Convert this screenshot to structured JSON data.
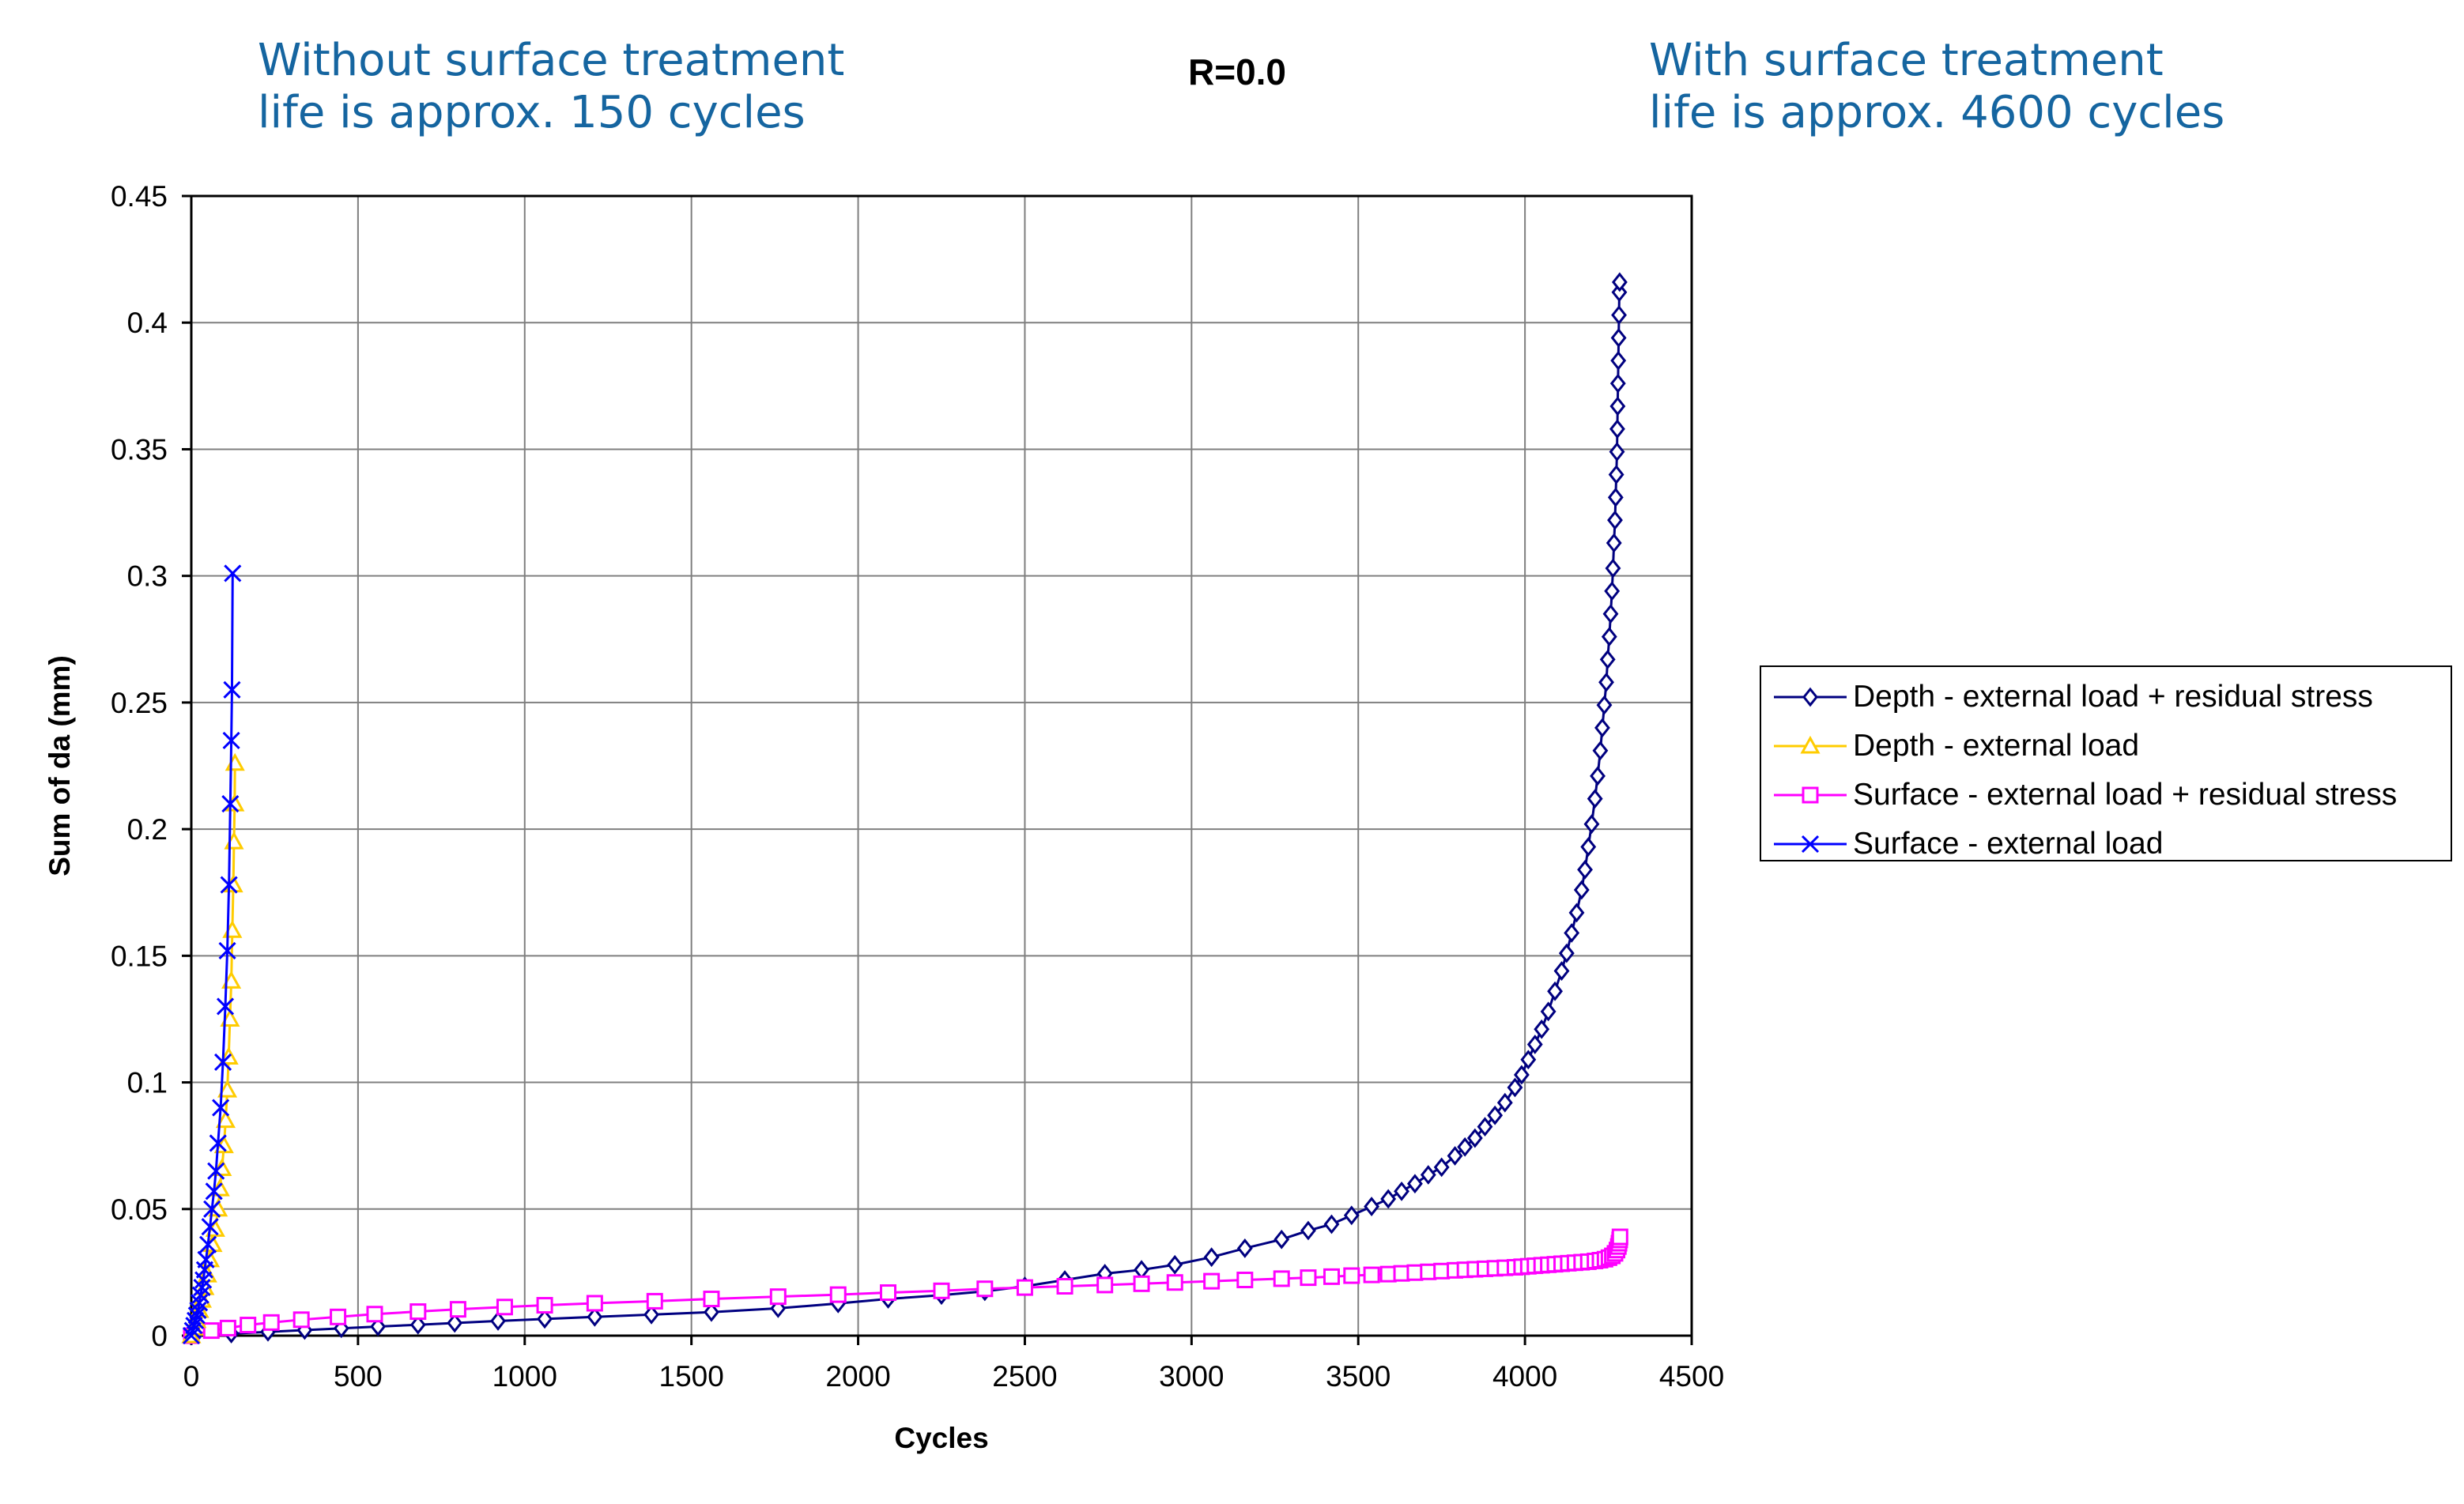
{
  "annotations": {
    "left_line1": "Without surface treatment",
    "left_line2": "life is approx. 150 cycles",
    "right_line1": "With surface treatment",
    "right_line2": "life is approx. 4600 cycles"
  },
  "chart_data": {
    "type": "line",
    "title": "R=0.0",
    "xlabel": "Cycles",
    "ylabel": "Sum of da (mm)",
    "xlim": [
      0,
      4500
    ],
    "ylim": [
      0,
      0.45
    ],
    "xticks": [
      0,
      500,
      1000,
      1500,
      2000,
      2500,
      3000,
      3500,
      4000,
      4500
    ],
    "yticks": [
      0,
      0.05,
      0.1,
      0.15,
      0.2,
      0.25,
      0.3,
      0.35,
      0.4,
      0.45
    ],
    "ytick_labels": [
      "0",
      "0.05",
      "0.1",
      "0.15",
      "0.2",
      "0.25",
      "0.3",
      "0.35",
      "0.4",
      "0.45"
    ],
    "grid": true,
    "legend_position": "right",
    "series": [
      {
        "name": "Depth - external load + residual stress",
        "color": "#000080",
        "marker": "diamond",
        "points": [
          [
            0,
            0
          ],
          [
            120,
            0.0008
          ],
          [
            230,
            0.0015
          ],
          [
            340,
            0.0022
          ],
          [
            450,
            0.0029
          ],
          [
            560,
            0.0036
          ],
          [
            680,
            0.0043
          ],
          [
            790,
            0.005
          ],
          [
            920,
            0.0058
          ],
          [
            1060,
            0.0066
          ],
          [
            1210,
            0.0074
          ],
          [
            1380,
            0.0083
          ],
          [
            1560,
            0.0093
          ],
          [
            1760,
            0.0108
          ],
          [
            1940,
            0.0127
          ],
          [
            2090,
            0.0145
          ],
          [
            2250,
            0.016
          ],
          [
            2380,
            0.0175
          ],
          [
            2500,
            0.0195
          ],
          [
            2620,
            0.022
          ],
          [
            2740,
            0.0245
          ],
          [
            2850,
            0.026
          ],
          [
            2950,
            0.028
          ],
          [
            3060,
            0.031
          ],
          [
            3160,
            0.0345
          ],
          [
            3270,
            0.038
          ],
          [
            3350,
            0.0415
          ],
          [
            3420,
            0.044
          ],
          [
            3480,
            0.0475
          ],
          [
            3540,
            0.051
          ],
          [
            3590,
            0.054
          ],
          [
            3630,
            0.057
          ],
          [
            3670,
            0.06
          ],
          [
            3710,
            0.0635
          ],
          [
            3750,
            0.0665
          ],
          [
            3790,
            0.071
          ],
          [
            3820,
            0.0745
          ],
          [
            3850,
            0.078
          ],
          [
            3880,
            0.0825
          ],
          [
            3910,
            0.087
          ],
          [
            3940,
            0.092
          ],
          [
            3970,
            0.098
          ],
          [
            3990,
            0.103
          ],
          [
            4010,
            0.109
          ],
          [
            4030,
            0.115
          ],
          [
            4050,
            0.121
          ],
          [
            4070,
            0.128
          ],
          [
            4090,
            0.136
          ],
          [
            4110,
            0.144
          ],
          [
            4125,
            0.151
          ],
          [
            4140,
            0.159
          ],
          [
            4155,
            0.167
          ],
          [
            4170,
            0.176
          ],
          [
            4180,
            0.184
          ],
          [
            4190,
            0.193
          ],
          [
            4200,
            0.202
          ],
          [
            4210,
            0.212
          ],
          [
            4218,
            0.221
          ],
          [
            4226,
            0.231
          ],
          [
            4232,
            0.24
          ],
          [
            4238,
            0.249
          ],
          [
            4244,
            0.258
          ],
          [
            4248,
            0.267
          ],
          [
            4253,
            0.276
          ],
          [
            4257,
            0.285
          ],
          [
            4261,
            0.294
          ],
          [
            4264,
            0.303
          ],
          [
            4267,
            0.313
          ],
          [
            4270,
            0.322
          ],
          [
            4272,
            0.331
          ],
          [
            4274,
            0.34
          ],
          [
            4276,
            0.349
          ],
          [
            4277,
            0.358
          ],
          [
            4278,
            0.367
          ],
          [
            4279,
            0.376
          ],
          [
            4280,
            0.385
          ],
          [
            4281,
            0.394
          ],
          [
            4282,
            0.403
          ],
          [
            4283,
            0.412
          ],
          [
            4284,
            0.416
          ]
        ]
      },
      {
        "name": "Depth - external load",
        "color": "#FFCC00",
        "marker": "triangle",
        "points": [
          [
            0,
            0
          ],
          [
            8,
            0.003
          ],
          [
            16,
            0.006
          ],
          [
            24,
            0.01
          ],
          [
            32,
            0.014
          ],
          [
            40,
            0.019
          ],
          [
            48,
            0.024
          ],
          [
            56,
            0.03
          ],
          [
            64,
            0.036
          ],
          [
            72,
            0.042
          ],
          [
            80,
            0.05
          ],
          [
            86,
            0.058
          ],
          [
            92,
            0.066
          ],
          [
            98,
            0.075
          ],
          [
            103,
            0.085
          ],
          [
            108,
            0.097
          ],
          [
            112,
            0.11
          ],
          [
            116,
            0.125
          ],
          [
            120,
            0.14
          ],
          [
            123,
            0.16
          ],
          [
            126,
            0.178
          ],
          [
            128,
            0.195
          ],
          [
            130,
            0.21
          ],
          [
            131,
            0.226
          ]
        ]
      },
      {
        "name": "Surface - external load + residual stress",
        "color": "#FF00FF",
        "marker": "square",
        "points": [
          [
            0,
            0
          ],
          [
            60,
            0.002
          ],
          [
            110,
            0.003
          ],
          [
            170,
            0.0042
          ],
          [
            240,
            0.0052
          ],
          [
            330,
            0.0063
          ],
          [
            440,
            0.0074
          ],
          [
            550,
            0.0085
          ],
          [
            680,
            0.0095
          ],
          [
            800,
            0.0104
          ],
          [
            940,
            0.0113
          ],
          [
            1060,
            0.012
          ],
          [
            1210,
            0.0128
          ],
          [
            1390,
            0.0136
          ],
          [
            1560,
            0.0145
          ],
          [
            1760,
            0.0154
          ],
          [
            1940,
            0.0162
          ],
          [
            2090,
            0.017
          ],
          [
            2250,
            0.0177
          ],
          [
            2380,
            0.0185
          ],
          [
            2500,
            0.019
          ],
          [
            2620,
            0.0195
          ],
          [
            2740,
            0.02
          ],
          [
            2850,
            0.0205
          ],
          [
            2950,
            0.021
          ],
          [
            3060,
            0.0215
          ],
          [
            3160,
            0.022
          ],
          [
            3270,
            0.0225
          ],
          [
            3350,
            0.0229
          ],
          [
            3420,
            0.0233
          ],
          [
            3480,
            0.0237
          ],
          [
            3540,
            0.024
          ],
          [
            3590,
            0.0243
          ],
          [
            3630,
            0.0246
          ],
          [
            3670,
            0.0249
          ],
          [
            3710,
            0.0252
          ],
          [
            3750,
            0.0255
          ],
          [
            3790,
            0.0258
          ],
          [
            3820,
            0.026
          ],
          [
            3850,
            0.0262
          ],
          [
            3880,
            0.0264
          ],
          [
            3910,
            0.0266
          ],
          [
            3940,
            0.0268
          ],
          [
            3970,
            0.027
          ],
          [
            3990,
            0.0272
          ],
          [
            4010,
            0.0274
          ],
          [
            4030,
            0.0276
          ],
          [
            4050,
            0.0278
          ],
          [
            4070,
            0.028
          ],
          [
            4090,
            0.0282
          ],
          [
            4110,
            0.0284
          ],
          [
            4130,
            0.0286
          ],
          [
            4150,
            0.0288
          ],
          [
            4170,
            0.029
          ],
          [
            4190,
            0.0292
          ],
          [
            4210,
            0.0295
          ],
          [
            4225,
            0.0298
          ],
          [
            4240,
            0.0302
          ],
          [
            4252,
            0.0308
          ],
          [
            4262,
            0.0315
          ],
          [
            4270,
            0.0325
          ],
          [
            4276,
            0.0338
          ],
          [
            4280,
            0.0352
          ],
          [
            4282,
            0.0365
          ],
          [
            4284,
            0.0378
          ],
          [
            4285,
            0.039
          ]
        ]
      },
      {
        "name": "Surface - external load",
        "color": "#0000FF",
        "marker": "cross",
        "points": [
          [
            0,
            0
          ],
          [
            4,
            0.002
          ],
          [
            8,
            0.004
          ],
          [
            12,
            0.006
          ],
          [
            16,
            0.008
          ],
          [
            20,
            0.01
          ],
          [
            24,
            0.013
          ],
          [
            28,
            0.016
          ],
          [
            32,
            0.019
          ],
          [
            36,
            0.022
          ],
          [
            40,
            0.026
          ],
          [
            44,
            0.03
          ],
          [
            50,
            0.036
          ],
          [
            56,
            0.043
          ],
          [
            62,
            0.05
          ],
          [
            68,
            0.057
          ],
          [
            74,
            0.065
          ],
          [
            80,
            0.076
          ],
          [
            88,
            0.09
          ],
          [
            95,
            0.108
          ],
          [
            102,
            0.13
          ],
          [
            108,
            0.152
          ],
          [
            113,
            0.178
          ],
          [
            117,
            0.21
          ],
          [
            120,
            0.235
          ],
          [
            122,
            0.255
          ],
          [
            124,
            0.301
          ]
        ]
      }
    ]
  }
}
